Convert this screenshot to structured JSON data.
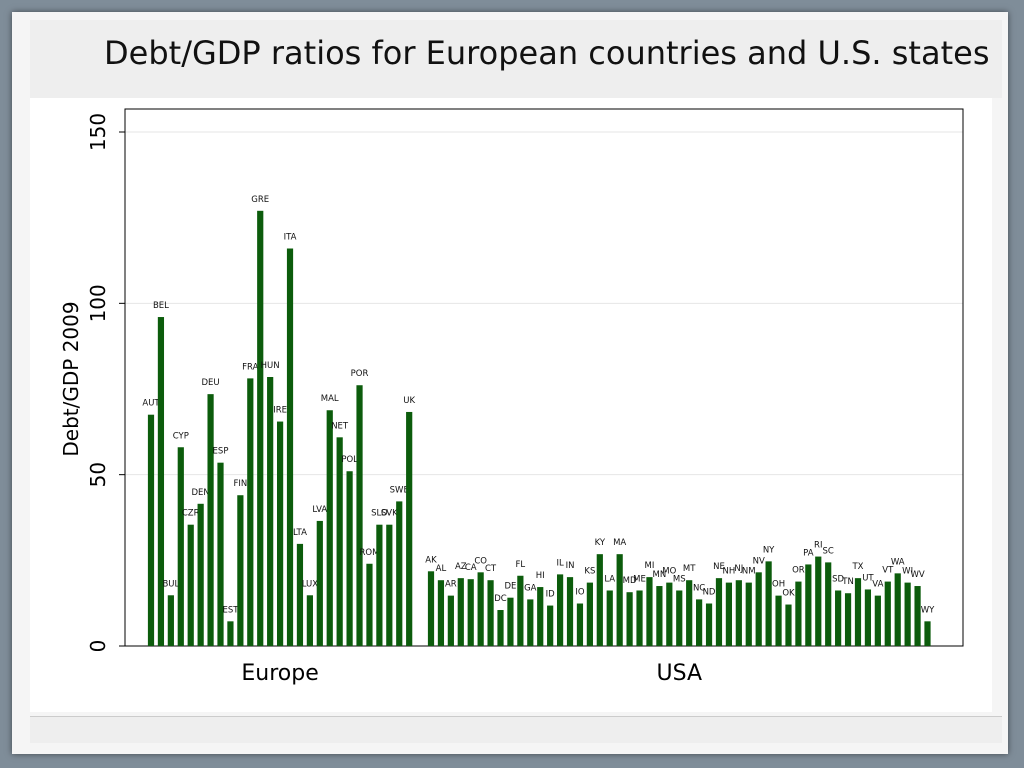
{
  "title": "Debt/GDP ratios for European countries and U.S. states",
  "chart_data": {
    "type": "bar",
    "ylabel": "Debt/GDP 2009",
    "ylim": [
      0,
      150
    ],
    "yticks": [
      0,
      50,
      100,
      150
    ],
    "grid": true,
    "bar_color": "#0c5c0c",
    "groups": [
      {
        "name": "Europe",
        "categories": [
          "AUT",
          "BEL",
          "BUL",
          "CYP",
          "CZR",
          "DEN",
          "DEU",
          "ESP",
          "EST",
          "FIN",
          "FRA",
          "GRE",
          "HUN",
          "IRE",
          "ITA",
          "LTA",
          "LUX",
          "LVA",
          "MAL",
          "NET",
          "POL",
          "POR",
          "ROM",
          "SLO",
          "SVK",
          "SWE",
          "UK"
        ],
        "values": [
          67.5,
          96,
          14.8,
          58,
          35.4,
          41.5,
          73.5,
          53.5,
          7.2,
          44,
          78.1,
          127,
          78.5,
          65.5,
          116,
          29.8,
          14.8,
          36.5,
          68.8,
          60.9,
          51,
          76.1,
          24,
          35.4,
          35.4,
          42.2,
          68.3
        ]
      },
      {
        "name": "USA",
        "categories": [
          "AK",
          "AL",
          "AR",
          "AZ",
          "CA",
          "CO",
          "CT",
          "DC",
          "DE",
          "FL",
          "GA",
          "HI",
          "ID",
          "IL",
          "IN",
          "IO",
          "KS",
          "KY",
          "LA",
          "MA",
          "MD",
          "ME",
          "MI",
          "MN",
          "MO",
          "MS",
          "MT",
          "NC",
          "ND",
          "NE",
          "NH",
          "NJ",
          "NM",
          "NV",
          "NY",
          "OH",
          "OK",
          "OR",
          "PA",
          "RI",
          "SC",
          "SD",
          "TN",
          "TX",
          "UT",
          "VA",
          "VT",
          "WA",
          "WI",
          "WV",
          "WY"
        ],
        "values": [
          21.8,
          19.2,
          14.7,
          19.8,
          19.5,
          21.5,
          19.2,
          10.5,
          14.1,
          20.5,
          13.6,
          17.2,
          11.8,
          20.9,
          20.1,
          12.4,
          18.5,
          26.8,
          16.2,
          26.8,
          15.7,
          16.2,
          20.1,
          17.5,
          18.5,
          16.2,
          19.2,
          13.6,
          12.4,
          19.8,
          18.5,
          19.2,
          18.5,
          21.5,
          24.7,
          14.7,
          12.1,
          18.8,
          23.8,
          26.1,
          24.4,
          16.2,
          15.4,
          19.8,
          16.5,
          14.7,
          18.8,
          21.2,
          18.5,
          17.5,
          7.2
        ]
      }
    ]
  }
}
